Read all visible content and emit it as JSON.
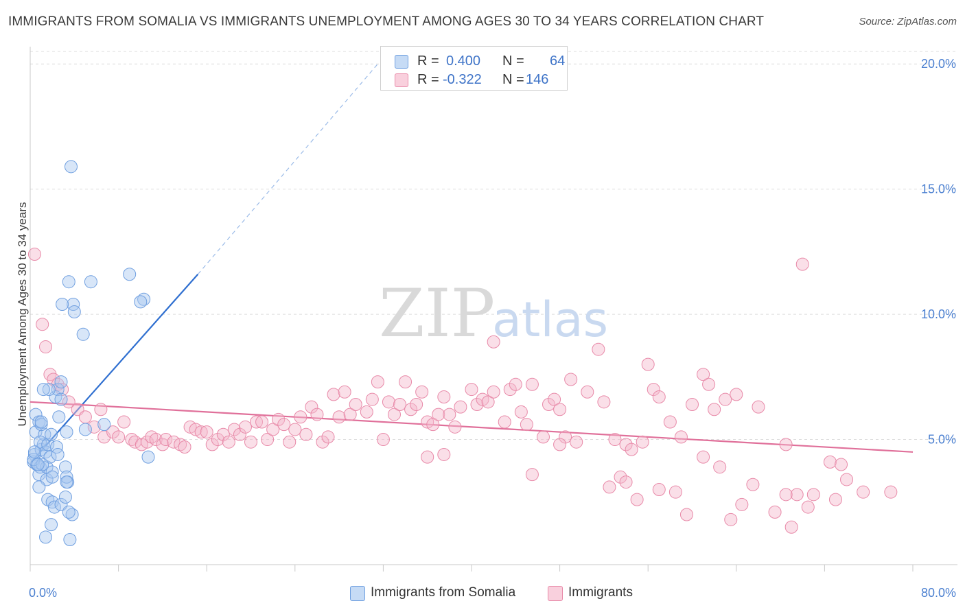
{
  "title": "IMMIGRANTS FROM SOMALIA VS IMMIGRANTS UNEMPLOYMENT AMONG AGES 30 TO 34 YEARS CORRELATION CHART",
  "source": "Source: ZipAtlas.com",
  "watermark": {
    "zip": "ZIP",
    "atlas": "atlas"
  },
  "legend_stats": [
    {
      "r_label": "R =",
      "r_value": "0.400",
      "n_label": "N =",
      "n_value": "64",
      "color": "#a8c8f0"
    },
    {
      "r_label": "R =",
      "r_value": "-0.322",
      "n_label": "N =",
      "n_value": "146",
      "color": "#f5b8cb"
    }
  ],
  "bottom_legend": [
    {
      "label": "Immigrants from Somalia",
      "color": "#a8c8f0"
    },
    {
      "label": "Immigrants",
      "color": "#f5b8cb"
    }
  ],
  "chart_data": {
    "type": "scatter",
    "title": "IMMIGRANTS FROM SOMALIA VS IMMIGRANTS UNEMPLOYMENT AMONG AGES 30 TO 34 YEARS CORRELATION CHART",
    "xlabel": "",
    "ylabel": "Unemployment Among Ages 30 to 34 years",
    "xlim": [
      0,
      80
    ],
    "ylim": [
      0,
      20.5
    ],
    "x_tick_labels": [
      {
        "value": 0,
        "label": "0.0%"
      },
      {
        "value": 80,
        "label": "80.0%"
      }
    ],
    "y_ticks": [
      {
        "value": 5,
        "label": "5.0%"
      },
      {
        "value": 10,
        "label": "10.0%"
      },
      {
        "value": 15,
        "label": "15.0%"
      },
      {
        "value": 20,
        "label": "20.0%"
      }
    ],
    "x_minor_ticks": [
      0,
      8,
      16,
      24,
      32,
      40,
      48,
      56,
      64,
      72,
      80
    ],
    "grid": true,
    "series": [
      {
        "name": "Immigrants from Somalia",
        "color": "#a8c8f0",
        "edge": "#6f9fe0",
        "trend": {
          "x": [
            0.1,
            15.2
          ],
          "y": [
            4.1,
            11.6
          ],
          "color": "#2f6fd0",
          "extend_dashed_to": [
            31.5,
            20.0
          ]
        },
        "points": [
          [
            3.7,
            15.9
          ],
          [
            0.5,
            5.3
          ],
          [
            0.4,
            4.4
          ],
          [
            0.3,
            4.1
          ],
          [
            0.6,
            4.0
          ],
          [
            0.8,
            3.6
          ],
          [
            0.9,
            3.9
          ],
          [
            1.0,
            4.6
          ],
          [
            1.2,
            4.8
          ],
          [
            1.3,
            5.2
          ],
          [
            0.5,
            6.0
          ],
          [
            0.8,
            5.7
          ],
          [
            1.0,
            5.6
          ],
          [
            0.9,
            4.9
          ],
          [
            1.5,
            3.9
          ],
          [
            1.5,
            3.4
          ],
          [
            1.4,
            4.5
          ],
          [
            1.6,
            4.8
          ],
          [
            1.9,
            5.2
          ],
          [
            1.8,
            4.3
          ],
          [
            2.0,
            3.7
          ],
          [
            2.0,
            3.5
          ],
          [
            2.4,
            4.7
          ],
          [
            2.5,
            4.4
          ],
          [
            2.3,
            6.7
          ],
          [
            2.5,
            7.0
          ],
          [
            2.8,
            7.3
          ],
          [
            1.7,
            7.0
          ],
          [
            1.2,
            7.0
          ],
          [
            1.0,
            5.7
          ],
          [
            3.2,
            3.9
          ],
          [
            3.3,
            5.3
          ],
          [
            2.6,
            5.9
          ],
          [
            2.8,
            6.6
          ],
          [
            3.4,
            3.3
          ],
          [
            3.3,
            3.5
          ],
          [
            3.3,
            3.3
          ],
          [
            3.8,
            2.0
          ],
          [
            3.9,
            10.4
          ],
          [
            4.0,
            10.1
          ],
          [
            3.5,
            11.3
          ],
          [
            2.9,
            10.4
          ],
          [
            5.5,
            11.3
          ],
          [
            4.8,
            9.2
          ],
          [
            9.0,
            11.6
          ],
          [
            10.3,
            10.6
          ],
          [
            10.0,
            10.5
          ],
          [
            10.7,
            4.3
          ],
          [
            6.7,
            5.6
          ],
          [
            5.0,
            5.4
          ],
          [
            0.8,
            3.1
          ],
          [
            1.6,
            2.6
          ],
          [
            2.0,
            2.5
          ],
          [
            2.2,
            2.3
          ],
          [
            2.8,
            2.4
          ],
          [
            3.5,
            2.1
          ],
          [
            1.9,
            1.6
          ],
          [
            1.4,
            1.1
          ],
          [
            3.6,
            1.0
          ],
          [
            3.2,
            2.7
          ],
          [
            0.3,
            4.2
          ],
          [
            0.4,
            4.5
          ],
          [
            1.1,
            4.0
          ],
          [
            0.7,
            4.0
          ]
        ]
      },
      {
        "name": "Immigrants",
        "color": "#f5b8cb",
        "edge": "#e889a8",
        "trend": {
          "x": [
            0.0,
            80.0
          ],
          "y": [
            6.5,
            4.5
          ],
          "color": "#e0709a"
        },
        "points": [
          [
            0.4,
            12.4
          ],
          [
            1.1,
            9.6
          ],
          [
            1.4,
            8.7
          ],
          [
            1.8,
            7.6
          ],
          [
            2.1,
            7.4
          ],
          [
            2.5,
            7.2
          ],
          [
            2.9,
            7.0
          ],
          [
            3.5,
            6.5
          ],
          [
            4.3,
            6.2
          ],
          [
            5.0,
            5.9
          ],
          [
            6.4,
            6.2
          ],
          [
            5.8,
            5.5
          ],
          [
            6.7,
            5.1
          ],
          [
            7.5,
            5.3
          ],
          [
            8.0,
            5.1
          ],
          [
            8.5,
            5.7
          ],
          [
            9.2,
            5.0
          ],
          [
            9.5,
            4.9
          ],
          [
            10.1,
            4.8
          ],
          [
            10.6,
            4.9
          ],
          [
            11.0,
            5.1
          ],
          [
            11.4,
            5.0
          ],
          [
            12.0,
            4.8
          ],
          [
            12.3,
            5.0
          ],
          [
            13.0,
            4.9
          ],
          [
            13.6,
            4.8
          ],
          [
            14.0,
            4.7
          ],
          [
            14.5,
            5.5
          ],
          [
            15.0,
            5.4
          ],
          [
            15.5,
            5.3
          ],
          [
            16.0,
            5.3
          ],
          [
            16.5,
            4.8
          ],
          [
            17.0,
            5.0
          ],
          [
            17.5,
            5.2
          ],
          [
            18.0,
            4.9
          ],
          [
            18.5,
            5.4
          ],
          [
            19.0,
            5.2
          ],
          [
            19.5,
            5.5
          ],
          [
            20.0,
            4.9
          ],
          [
            20.5,
            5.7
          ],
          [
            21.0,
            5.7
          ],
          [
            21.5,
            5.0
          ],
          [
            22.0,
            5.4
          ],
          [
            22.5,
            5.8
          ],
          [
            23.0,
            5.6
          ],
          [
            23.5,
            4.9
          ],
          [
            24.0,
            5.4
          ],
          [
            24.5,
            5.9
          ],
          [
            25.0,
            5.2
          ],
          [
            25.5,
            6.3
          ],
          [
            26.0,
            6.0
          ],
          [
            26.5,
            4.9
          ],
          [
            27.0,
            5.1
          ],
          [
            27.5,
            6.8
          ],
          [
            28.0,
            5.9
          ],
          [
            28.5,
            6.9
          ],
          [
            29.0,
            6.0
          ],
          [
            29.5,
            6.4
          ],
          [
            30.5,
            6.1
          ],
          [
            31.0,
            6.6
          ],
          [
            31.5,
            7.3
          ],
          [
            32.0,
            5.0
          ],
          [
            32.5,
            6.5
          ],
          [
            33.0,
            6.0
          ],
          [
            33.5,
            6.4
          ],
          [
            34.0,
            7.3
          ],
          [
            34.5,
            6.2
          ],
          [
            35.0,
            6.4
          ],
          [
            35.5,
            6.9
          ],
          [
            36.0,
            5.7
          ],
          [
            36.5,
            5.6
          ],
          [
            37.0,
            6.0
          ],
          [
            37.5,
            6.7
          ],
          [
            38.0,
            6.0
          ],
          [
            38.5,
            5.5
          ],
          [
            39.0,
            6.3
          ],
          [
            40.0,
            7.0
          ],
          [
            40.5,
            6.4
          ],
          [
            41.0,
            6.6
          ],
          [
            41.5,
            6.5
          ],
          [
            42.0,
            6.9
          ],
          [
            43.0,
            5.7
          ],
          [
            43.5,
            7.0
          ],
          [
            44.0,
            7.2
          ],
          [
            44.5,
            6.1
          ],
          [
            45.0,
            5.6
          ],
          [
            45.5,
            7.2
          ],
          [
            46.5,
            5.1
          ],
          [
            47.0,
            6.4
          ],
          [
            47.5,
            6.6
          ],
          [
            48.0,
            6.2
          ],
          [
            48.5,
            5.1
          ],
          [
            49.5,
            4.9
          ],
          [
            50.5,
            6.9
          ],
          [
            51.5,
            8.6
          ],
          [
            52.0,
            6.5
          ],
          [
            53.0,
            5.0
          ],
          [
            54.0,
            4.8
          ],
          [
            54.5,
            4.6
          ],
          [
            55.5,
            4.9
          ],
          [
            56.5,
            7.0
          ],
          [
            57.0,
            6.7
          ],
          [
            58.0,
            5.7
          ],
          [
            59.0,
            5.1
          ],
          [
            60.0,
            6.4
          ],
          [
            61.0,
            7.6
          ],
          [
            61.5,
            7.2
          ],
          [
            62.0,
            6.2
          ],
          [
            63.0,
            6.6
          ],
          [
            64.0,
            6.8
          ],
          [
            66.0,
            6.3
          ],
          [
            68.5,
            4.8
          ],
          [
            70.0,
            12.0
          ],
          [
            42.0,
            8.9
          ],
          [
            37.5,
            4.4
          ],
          [
            36.0,
            4.3
          ],
          [
            45.5,
            3.6
          ],
          [
            52.5,
            3.1
          ],
          [
            53.5,
            3.5
          ],
          [
            54.0,
            3.3
          ],
          [
            55.0,
            2.6
          ],
          [
            57.0,
            3.0
          ],
          [
            58.5,
            2.9
          ],
          [
            59.5,
            2.0
          ],
          [
            61.0,
            4.3
          ],
          [
            62.5,
            3.9
          ],
          [
            63.5,
            1.8
          ],
          [
            64.5,
            2.4
          ],
          [
            65.5,
            3.2
          ],
          [
            67.5,
            2.1
          ],
          [
            69.0,
            1.5
          ],
          [
            69.5,
            2.8
          ],
          [
            70.5,
            2.3
          ],
          [
            71.0,
            2.8
          ],
          [
            72.5,
            4.1
          ],
          [
            73.0,
            2.6
          ],
          [
            73.5,
            4.0
          ],
          [
            74.0,
            3.4
          ],
          [
            75.5,
            2.9
          ],
          [
            78.0,
            2.9
          ],
          [
            48.0,
            4.8
          ],
          [
            49.0,
            7.4
          ],
          [
            68.5,
            2.8
          ],
          [
            56.0,
            8.0
          ]
        ]
      }
    ]
  }
}
